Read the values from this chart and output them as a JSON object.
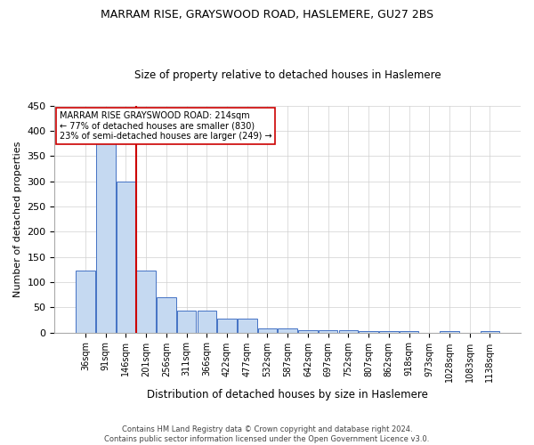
{
  "title1": "MARRAM RISE, GRAYSWOOD ROAD, HASLEMERE, GU27 2BS",
  "title2": "Size of property relative to detached houses in Haslemere",
  "xlabel": "Distribution of detached houses by size in Haslemere",
  "ylabel": "Number of detached properties",
  "footnote": "Contains HM Land Registry data © Crown copyright and database right 2024.\nContains public sector information licensed under the Open Government Licence v3.0.",
  "bin_labels": [
    "36sqm",
    "91sqm",
    "146sqm",
    "201sqm",
    "256sqm",
    "311sqm",
    "366sqm",
    "422sqm",
    "477sqm",
    "532sqm",
    "587sqm",
    "642sqm",
    "697sqm",
    "752sqm",
    "807sqm",
    "862sqm",
    "918sqm",
    "973sqm",
    "1028sqm",
    "1083sqm",
    "1138sqm"
  ],
  "bar_heights": [
    122,
    375,
    300,
    122,
    70,
    43,
    43,
    28,
    28,
    8,
    8,
    5,
    5,
    5,
    2,
    2,
    2,
    0,
    2,
    0,
    2
  ],
  "bar_color": "#c5d9f1",
  "bar_edge_color": "#4472c4",
  "vline_x": 2.5,
  "annotation_text": "MARRAM RISE GRAYSWOOD ROAD: 214sqm\n← 77% of detached houses are smaller (830)\n23% of semi-detached houses are larger (249) →",
  "vline_color": "#cc0000",
  "box_edge_color": "#cc0000",
  "ylim": [
    0,
    450
  ],
  "yticks": [
    0,
    50,
    100,
    150,
    200,
    250,
    300,
    350,
    400,
    450
  ],
  "bg_color": "#ffffff",
  "grid_color": "#d0d0d0"
}
